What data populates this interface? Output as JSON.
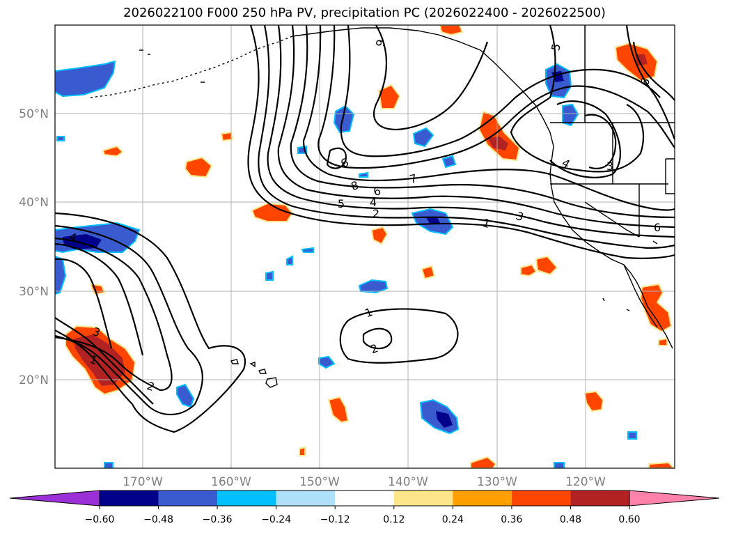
{
  "title": "2026022100 F000 250 hPa PV, precipitation PC (2026022400 - 2026022500)",
  "map": {
    "lat_ticks": [
      "50°N",
      "40°N",
      "30°N",
      "20°N"
    ],
    "lon_ticks": [
      "170°W",
      "160°W",
      "150°W",
      "140°W",
      "130°W",
      "120°W"
    ],
    "contour_labels": [
      "9",
      "5",
      "6",
      "4",
      "3",
      "9",
      "8",
      "7",
      "6",
      "5",
      "4",
      "2",
      "1",
      "3",
      "6",
      "4",
      "3",
      "1",
      "2",
      "1",
      "2"
    ]
  },
  "colorbar": {
    "ticks": [
      "−0.60",
      "−0.48",
      "−0.36",
      "−0.24",
      "−0.12",
      "0.12",
      "0.24",
      "0.36",
      "0.48",
      "0.60"
    ],
    "colors": [
      "#9b30d9",
      "#00008b",
      "#3a5bd0",
      "#00bfff",
      "#aee0fa",
      "#ffffff",
      "#fde68a",
      "#ff9f00",
      "#ff4500",
      "#b22222",
      "#ff82ab"
    ]
  },
  "colors": {
    "pos_low": "#fde68a",
    "pos_mid": "#ff9f00",
    "pos_high": "#ff4500",
    "pos_max": "#b22222",
    "neg_low": "#aee0fa",
    "neg_mid": "#00bfff",
    "neg_high": "#3a5bd0",
    "neg_max": "#00008b"
  }
}
